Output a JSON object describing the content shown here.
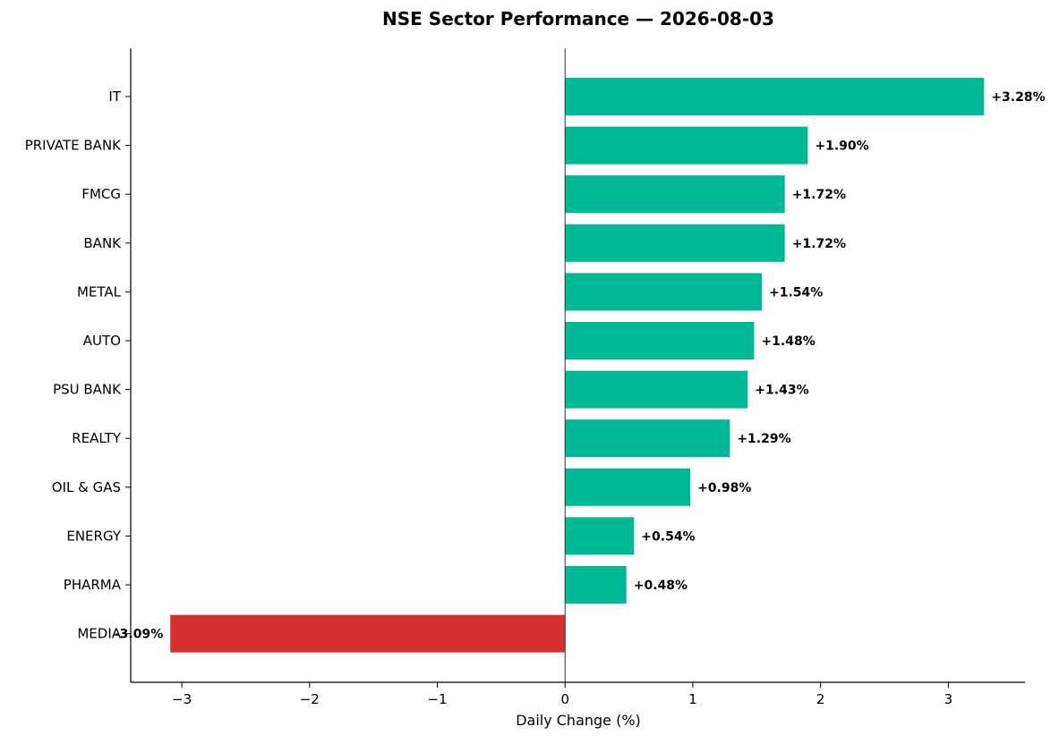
{
  "chart_data": {
    "type": "bar",
    "orientation": "horizontal",
    "title": "NSE Sector Performance — 2026-08-03",
    "xlabel": "Daily Change (%)",
    "ylabel": "",
    "xlim": [
      -3.4,
      3.6
    ],
    "xticks": [
      -3,
      -2,
      -1,
      0,
      1,
      2,
      3
    ],
    "xtick_labels": [
      "−3",
      "−2",
      "−1",
      "0",
      "1",
      "2",
      "3"
    ],
    "grid": false,
    "categories": [
      "IT",
      "PRIVATE BANK",
      "FMCG",
      "BANK",
      "METAL",
      "AUTO",
      "PSU BANK",
      "REALTY",
      "OIL & GAS",
      "ENERGY",
      "PHARMA",
      "MEDIA"
    ],
    "values": [
      3.28,
      1.9,
      1.72,
      1.72,
      1.54,
      1.48,
      1.43,
      1.29,
      0.98,
      0.54,
      0.48,
      -3.09
    ],
    "value_labels": [
      "+3.28%",
      "+1.90%",
      "+1.72%",
      "+1.72%",
      "+1.54%",
      "+1.48%",
      "+1.43%",
      "+1.29%",
      "+0.98%",
      "+0.54%",
      "+0.48%",
      "-3.09%"
    ],
    "colors": {
      "positive": "#00b894",
      "negative": "#d63031",
      "zero_line": "#333333"
    }
  }
}
